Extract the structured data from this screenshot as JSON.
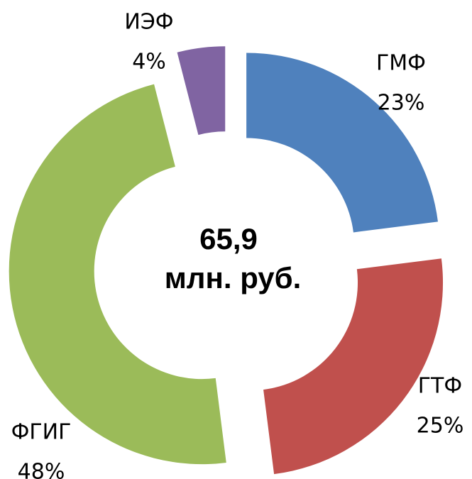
{
  "chart_data": {
    "type": "donut",
    "categories": [
      "ГМФ",
      "ГТФ",
      "ФГИГ",
      "ИЭФ"
    ],
    "values": [
      23,
      25,
      48,
      4
    ],
    "value_labels": [
      "23%",
      "25%",
      "48%",
      "4%"
    ],
    "colors": [
      "#4f81bd",
      "#c0504d",
      "#9bbb59",
      "#8064a2"
    ],
    "center_label": [
      "65,9",
      "млн. руб."
    ]
  }
}
